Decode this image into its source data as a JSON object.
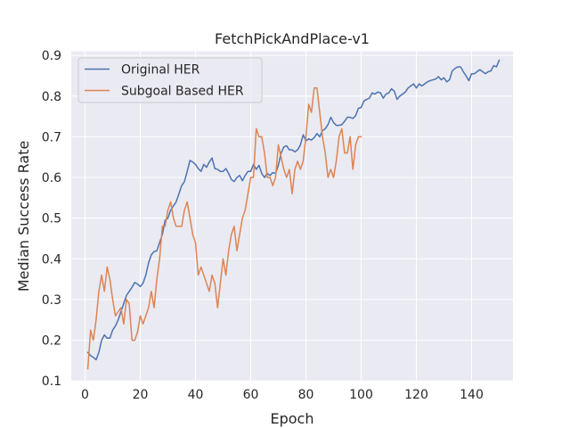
{
  "chart_data": {
    "type": "line",
    "title": "FetchPickAndPlace-v1",
    "xlabel": "Epoch",
    "ylabel": "Median Success Rate",
    "xlim": [
      -5,
      155
    ],
    "ylim": [
      0.1,
      0.91
    ],
    "xticks": [
      0,
      20,
      40,
      60,
      80,
      100,
      120,
      140
    ],
    "yticks": [
      0.1,
      0.2,
      0.3,
      0.4,
      0.5,
      0.6,
      0.7,
      0.8,
      0.9
    ],
    "grid": true,
    "legend_position": "upper-left",
    "series": [
      {
        "name": "Original HER",
        "color": "#4c72b0",
        "x": [
          1,
          2,
          3,
          4,
          5,
          6,
          7,
          8,
          9,
          10,
          11,
          12,
          13,
          14,
          15,
          16,
          17,
          18,
          19,
          20,
          21,
          22,
          23,
          24,
          25,
          26,
          27,
          28,
          29,
          30,
          31,
          32,
          33,
          34,
          35,
          36,
          37,
          38,
          39,
          40,
          41,
          42,
          43,
          44,
          45,
          46,
          47,
          48,
          49,
          50,
          51,
          52,
          53,
          54,
          55,
          56,
          57,
          58,
          59,
          60,
          61,
          62,
          63,
          64,
          65,
          66,
          67,
          68,
          69,
          70,
          71,
          72,
          73,
          74,
          75,
          76,
          77,
          78,
          79,
          80,
          81,
          82,
          83,
          84,
          85,
          86,
          87,
          88,
          89,
          90,
          91,
          92,
          93,
          94,
          95,
          96,
          97,
          98,
          99,
          100,
          101,
          102,
          103,
          104,
          105,
          106,
          107,
          108,
          109,
          110,
          111,
          112,
          113,
          114,
          115,
          116,
          117,
          118,
          119,
          120,
          121,
          122,
          123,
          124,
          125,
          126,
          127,
          128,
          129,
          130,
          131,
          132,
          133,
          134,
          135,
          136,
          137,
          138,
          139,
          140,
          141,
          142,
          143,
          144,
          145,
          146,
          147,
          148,
          149,
          150
        ],
        "values": [
          0.17,
          0.162,
          0.158,
          0.152,
          0.17,
          0.2,
          0.213,
          0.205,
          0.205,
          0.225,
          0.235,
          0.25,
          0.27,
          0.29,
          0.31,
          0.32,
          0.33,
          0.342,
          0.338,
          0.332,
          0.34,
          0.36,
          0.39,
          0.41,
          0.418,
          0.42,
          0.44,
          0.46,
          0.495,
          0.5,
          0.52,
          0.53,
          0.54,
          0.56,
          0.58,
          0.59,
          0.615,
          0.642,
          0.638,
          0.632,
          0.622,
          0.615,
          0.632,
          0.625,
          0.638,
          0.648,
          0.622,
          0.62,
          0.615,
          0.615,
          0.622,
          0.61,
          0.595,
          0.59,
          0.6,
          0.605,
          0.592,
          0.605,
          0.615,
          0.615,
          0.632,
          0.62,
          0.63,
          0.61,
          0.6,
          0.61,
          0.605,
          0.612,
          0.61,
          0.63,
          0.66,
          0.675,
          0.678,
          0.668,
          0.668,
          0.663,
          0.668,
          0.68,
          0.705,
          0.69,
          0.695,
          0.692,
          0.698,
          0.708,
          0.7,
          0.715,
          0.72,
          0.73,
          0.748,
          0.735,
          0.728,
          0.728,
          0.73,
          0.738,
          0.748,
          0.748,
          0.745,
          0.752,
          0.77,
          0.772,
          0.788,
          0.792,
          0.795,
          0.808,
          0.805,
          0.81,
          0.808,
          0.795,
          0.805,
          0.808,
          0.818,
          0.812,
          0.792,
          0.8,
          0.805,
          0.81,
          0.82,
          0.825,
          0.83,
          0.82,
          0.83,
          0.825,
          0.83,
          0.835,
          0.838,
          0.84,
          0.842,
          0.848,
          0.84,
          0.845,
          0.835,
          0.84,
          0.862,
          0.868,
          0.872,
          0.872,
          0.86,
          0.85,
          0.838,
          0.855,
          0.855,
          0.86,
          0.865,
          0.86,
          0.855,
          0.86,
          0.862,
          0.875,
          0.872,
          0.888
        ]
      },
      {
        "name": "Subgoal Based HER",
        "color": "#dd8452",
        "x": [
          1,
          2,
          3,
          4,
          5,
          6,
          7,
          8,
          9,
          10,
          11,
          12,
          13,
          14,
          15,
          16,
          17,
          18,
          19,
          20,
          21,
          22,
          23,
          24,
          25,
          26,
          27,
          28,
          29,
          30,
          31,
          32,
          33,
          34,
          35,
          36,
          37,
          38,
          39,
          40,
          41,
          42,
          43,
          44,
          45,
          46,
          47,
          48,
          49,
          50,
          51,
          52,
          53,
          54,
          55,
          56,
          57,
          58,
          59,
          60,
          61,
          62,
          63,
          64,
          65,
          66,
          67,
          68,
          69,
          70,
          71,
          72,
          73,
          74,
          75,
          76,
          77,
          78,
          79,
          80,
          81,
          82,
          83,
          84,
          85,
          86,
          87,
          88,
          89,
          90,
          91,
          92,
          93,
          94,
          95,
          96,
          97,
          98,
          99,
          100
        ],
        "values": [
          0.13,
          0.225,
          0.2,
          0.25,
          0.32,
          0.36,
          0.32,
          0.38,
          0.35,
          0.3,
          0.26,
          0.27,
          0.28,
          0.24,
          0.3,
          0.29,
          0.2,
          0.2,
          0.22,
          0.26,
          0.24,
          0.26,
          0.28,
          0.32,
          0.28,
          0.35,
          0.4,
          0.48,
          0.48,
          0.52,
          0.54,
          0.5,
          0.48,
          0.48,
          0.48,
          0.52,
          0.54,
          0.5,
          0.46,
          0.44,
          0.36,
          0.38,
          0.36,
          0.34,
          0.32,
          0.36,
          0.34,
          0.28,
          0.34,
          0.4,
          0.36,
          0.42,
          0.46,
          0.48,
          0.42,
          0.46,
          0.5,
          0.52,
          0.56,
          0.6,
          0.6,
          0.72,
          0.7,
          0.7,
          0.66,
          0.6,
          0.6,
          0.58,
          0.6,
          0.68,
          0.65,
          0.62,
          0.6,
          0.62,
          0.56,
          0.62,
          0.64,
          0.62,
          0.64,
          0.7,
          0.78,
          0.76,
          0.82,
          0.82,
          0.76,
          0.7,
          0.66,
          0.6,
          0.62,
          0.6,
          0.64,
          0.7,
          0.72,
          0.66,
          0.66,
          0.7,
          0.62,
          0.68,
          0.7,
          0.7
        ]
      }
    ]
  }
}
